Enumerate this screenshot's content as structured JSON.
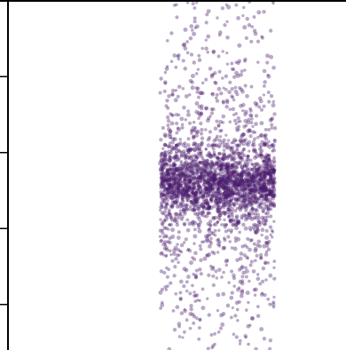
{
  "chart_data": {
    "type": "scatter",
    "title": "",
    "xlabel": "",
    "ylabel": "",
    "xlim": [
      0,
      1
    ],
    "ylim": [
      0,
      4.6
    ],
    "yticks": [
      0.6,
      1.6,
      2.6,
      3.6,
      4.6
    ],
    "grid": false,
    "legend": "none",
    "series": [
      {
        "name": "",
        "color": "#4a1a6b",
        "opacity": 0.38,
        "point_count": 2800,
        "x_range": [
          0.45,
          0.79
        ],
        "y_distribution": {
          "core_center": 2.2,
          "core_range": [
            1.7,
            2.65
          ],
          "halo_range": [
            0.0,
            4.6
          ]
        }
      }
    ]
  }
}
